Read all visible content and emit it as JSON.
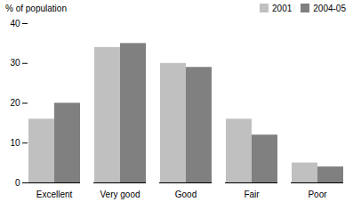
{
  "chart_data": {
    "type": "bar",
    "ylabel": "% of population",
    "categories": [
      "Excellent",
      "Very good",
      "Good",
      "Fair",
      "Poor"
    ],
    "series": [
      {
        "name": "2001",
        "color": "#c0c0c0",
        "values": [
          16,
          34,
          30,
          16,
          5
        ]
      },
      {
        "name": "2004-05",
        "color": "#808080",
        "values": [
          20,
          35,
          29,
          12,
          4
        ]
      }
    ],
    "ylim": [
      0,
      40
    ],
    "yticks": [
      0,
      10,
      20,
      30,
      40
    ],
    "grid": false,
    "legend": "upper right"
  }
}
